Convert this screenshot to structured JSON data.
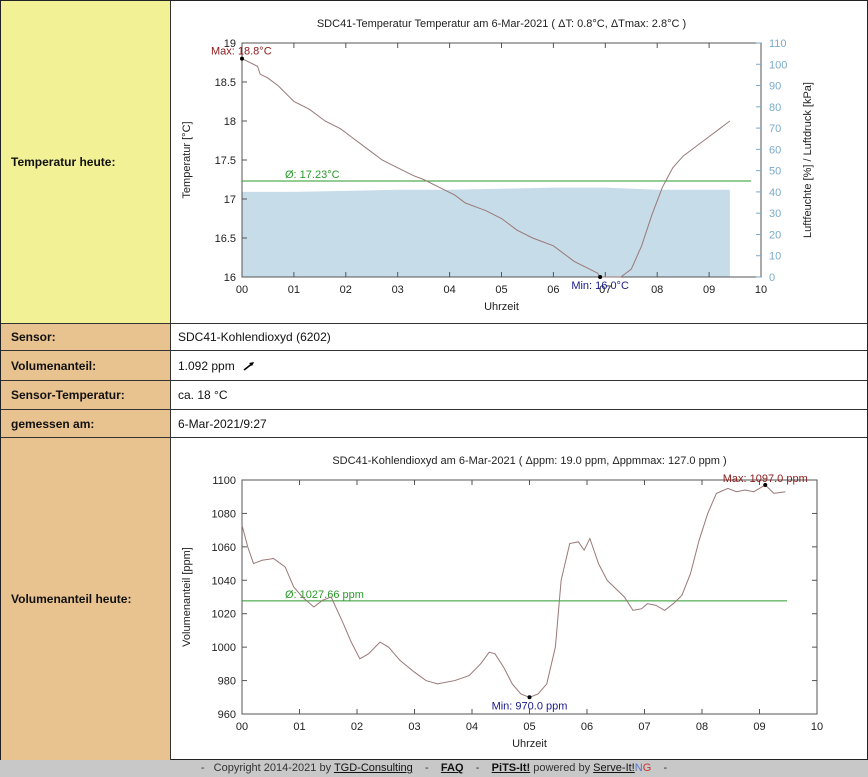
{
  "rows": {
    "temp_today": "Temperatur heute:",
    "sensor_label": "Sensor:",
    "sensor_value": "SDC41-Kohlendioxyd (6202)",
    "vol_label": "Volumenanteil:",
    "vol_value": "1.092 ppm",
    "sensortemp_label": "Sensor-Temperatur:",
    "sensortemp_value": "ca. 18 °C",
    "measured_label": "gemessen am:",
    "measured_value": "6-Mar-2021/9:27",
    "vol_today": "Volumenanteil heute:"
  },
  "footer": {
    "copyright": "Copyright 2014-2021 by",
    "tgd": "TGD-Consulting",
    "faq": "FAQ",
    "pits": "PiTS-It!",
    "powered": "powered by",
    "serve": "Serve-It!",
    "ng_n": "N",
    "ng_g": "G"
  },
  "chart_data": [
    {
      "type": "line",
      "title": "SDC41-Temperatur Temperatur am 6-Mar-2021   ( ΔT: 0.8°C, ΔTmax: 2.8°C )",
      "xlabel": "Uhrzeit",
      "ylabel": "Temperatur [°C]",
      "y2label": "Luftfeuchte [%] / Luftdruck [kPa]",
      "xlim": [
        0,
        10
      ],
      "ylim": [
        16,
        19
      ],
      "y2lim": [
        0,
        110
      ],
      "xticks": [
        "00",
        "01",
        "02",
        "03",
        "04",
        "05",
        "06",
        "07",
        "08",
        "09",
        "10"
      ],
      "yticks": [
        "16",
        "16.5",
        "17",
        "17.5",
        "18",
        "18.5",
        "19"
      ],
      "y2ticks": [
        "0",
        "10",
        "20",
        "30",
        "40",
        "50",
        "60",
        "70",
        "80",
        "90",
        "100",
        "110"
      ],
      "series": [
        {
          "color": "#9a7878",
          "x": [
            0,
            0.3,
            0.35,
            0.5,
            0.7,
            1.0,
            1.3,
            1.6,
            1.9,
            2.1,
            2.4,
            2.7,
            3.0,
            3.3,
            3.5,
            3.8,
            4.1,
            4.3,
            4.5,
            4.7,
            5.0,
            5.3,
            5.6,
            6.0,
            6.4,
            6.7,
            6.85,
            6.9,
            7.0,
            7.3,
            7.5,
            7.7,
            7.9,
            8.1,
            8.3,
            8.5,
            8.8,
            9.0,
            9.2,
            9.4
          ],
          "y": [
            18.8,
            18.7,
            18.6,
            18.55,
            18.45,
            18.25,
            18.15,
            18.0,
            17.9,
            17.8,
            17.65,
            17.5,
            17.4,
            17.3,
            17.25,
            17.15,
            17.05,
            16.95,
            16.9,
            16.85,
            16.75,
            16.6,
            16.5,
            16.4,
            16.2,
            16.1,
            16.05,
            16.0,
            16.0,
            16.0,
            16.1,
            16.4,
            16.8,
            17.15,
            17.4,
            17.55,
            17.7,
            17.8,
            17.9,
            18.0
          ]
        },
        {
          "color": "#c6dce8",
          "axis": "y2",
          "x": [
            0,
            1,
            2,
            3,
            4,
            5,
            6,
            7,
            8,
            9.4
          ],
          "y": [
            40,
            40,
            40.5,
            41,
            41,
            41.5,
            42,
            42,
            41,
            41
          ]
        }
      ],
      "annotations": [
        {
          "text": "Max: 18.8°C",
          "x": 0,
          "y": 18.8,
          "color": "#8b1a1a"
        },
        {
          "text": "Min: 16.0°C",
          "x": 6.9,
          "y": 16.0,
          "color": "#1a1a8b"
        },
        {
          "text": "Ø: 17.23°C",
          "y": 17.23,
          "color": "#2a9a2a"
        }
      ]
    },
    {
      "type": "line",
      "title": "SDC41-Kohlendioxyd am 6-Mar-2021   ( Δppm: 19.0 ppm, Δppmmax: 127.0 ppm )",
      "xlabel": "Uhrzeit",
      "ylabel": "Volumenanteil [ppm]",
      "xlim": [
        0,
        10
      ],
      "ylim": [
        960,
        1100
      ],
      "xticks": [
        "00",
        "01",
        "02",
        "03",
        "04",
        "05",
        "06",
        "07",
        "08",
        "09",
        "10"
      ],
      "yticks": [
        "960",
        "980",
        "1000",
        "1020",
        "1040",
        "1060",
        "1080",
        "1100"
      ],
      "series": [
        {
          "color": "#9a7878",
          "x": [
            0,
            0.1,
            0.2,
            0.35,
            0.55,
            0.75,
            0.9,
            1.05,
            1.25,
            1.4,
            1.55,
            1.75,
            1.9,
            2.05,
            2.2,
            2.4,
            2.55,
            2.75,
            3.0,
            3.2,
            3.4,
            3.7,
            3.95,
            4.15,
            4.3,
            4.4,
            4.55,
            4.7,
            4.85,
            5.0,
            5.15,
            5.3,
            5.45,
            5.55,
            5.7,
            5.85,
            5.95,
            6.05,
            6.2,
            6.35,
            6.5,
            6.65,
            6.8,
            6.95,
            7.05,
            7.2,
            7.35,
            7.5,
            7.65,
            7.8,
            7.95,
            8.1,
            8.25,
            8.45,
            8.6,
            8.75,
            8.9,
            9.1,
            9.25,
            9.45
          ],
          "y": [
            1073,
            1060,
            1050,
            1052,
            1053,
            1048,
            1036,
            1030,
            1024,
            1028,
            1030,
            1015,
            1003,
            993,
            996,
            1003,
            1000,
            992,
            985,
            980,
            978,
            980,
            983,
            990,
            997,
            996,
            988,
            978,
            972,
            970,
            972,
            978,
            1000,
            1040,
            1062,
            1063,
            1058,
            1065,
            1050,
            1040,
            1035,
            1030,
            1022,
            1023,
            1026,
            1025,
            1022,
            1026,
            1031,
            1044,
            1064,
            1080,
            1092,
            1095,
            1093,
            1094,
            1093,
            1097,
            1092,
            1093
          ]
        }
      ],
      "annotations": [
        {
          "text": "Max: 1097.0 ppm",
          "x": 9.1,
          "y": 1097,
          "color": "#8b1a1a"
        },
        {
          "text": "Min: 970.0 ppm",
          "x": 5.0,
          "y": 970,
          "color": "#1a1a8b"
        },
        {
          "text": "Ø: 1027.66 ppm",
          "y": 1027.66,
          "color": "#2a9a2a"
        }
      ]
    }
  ]
}
